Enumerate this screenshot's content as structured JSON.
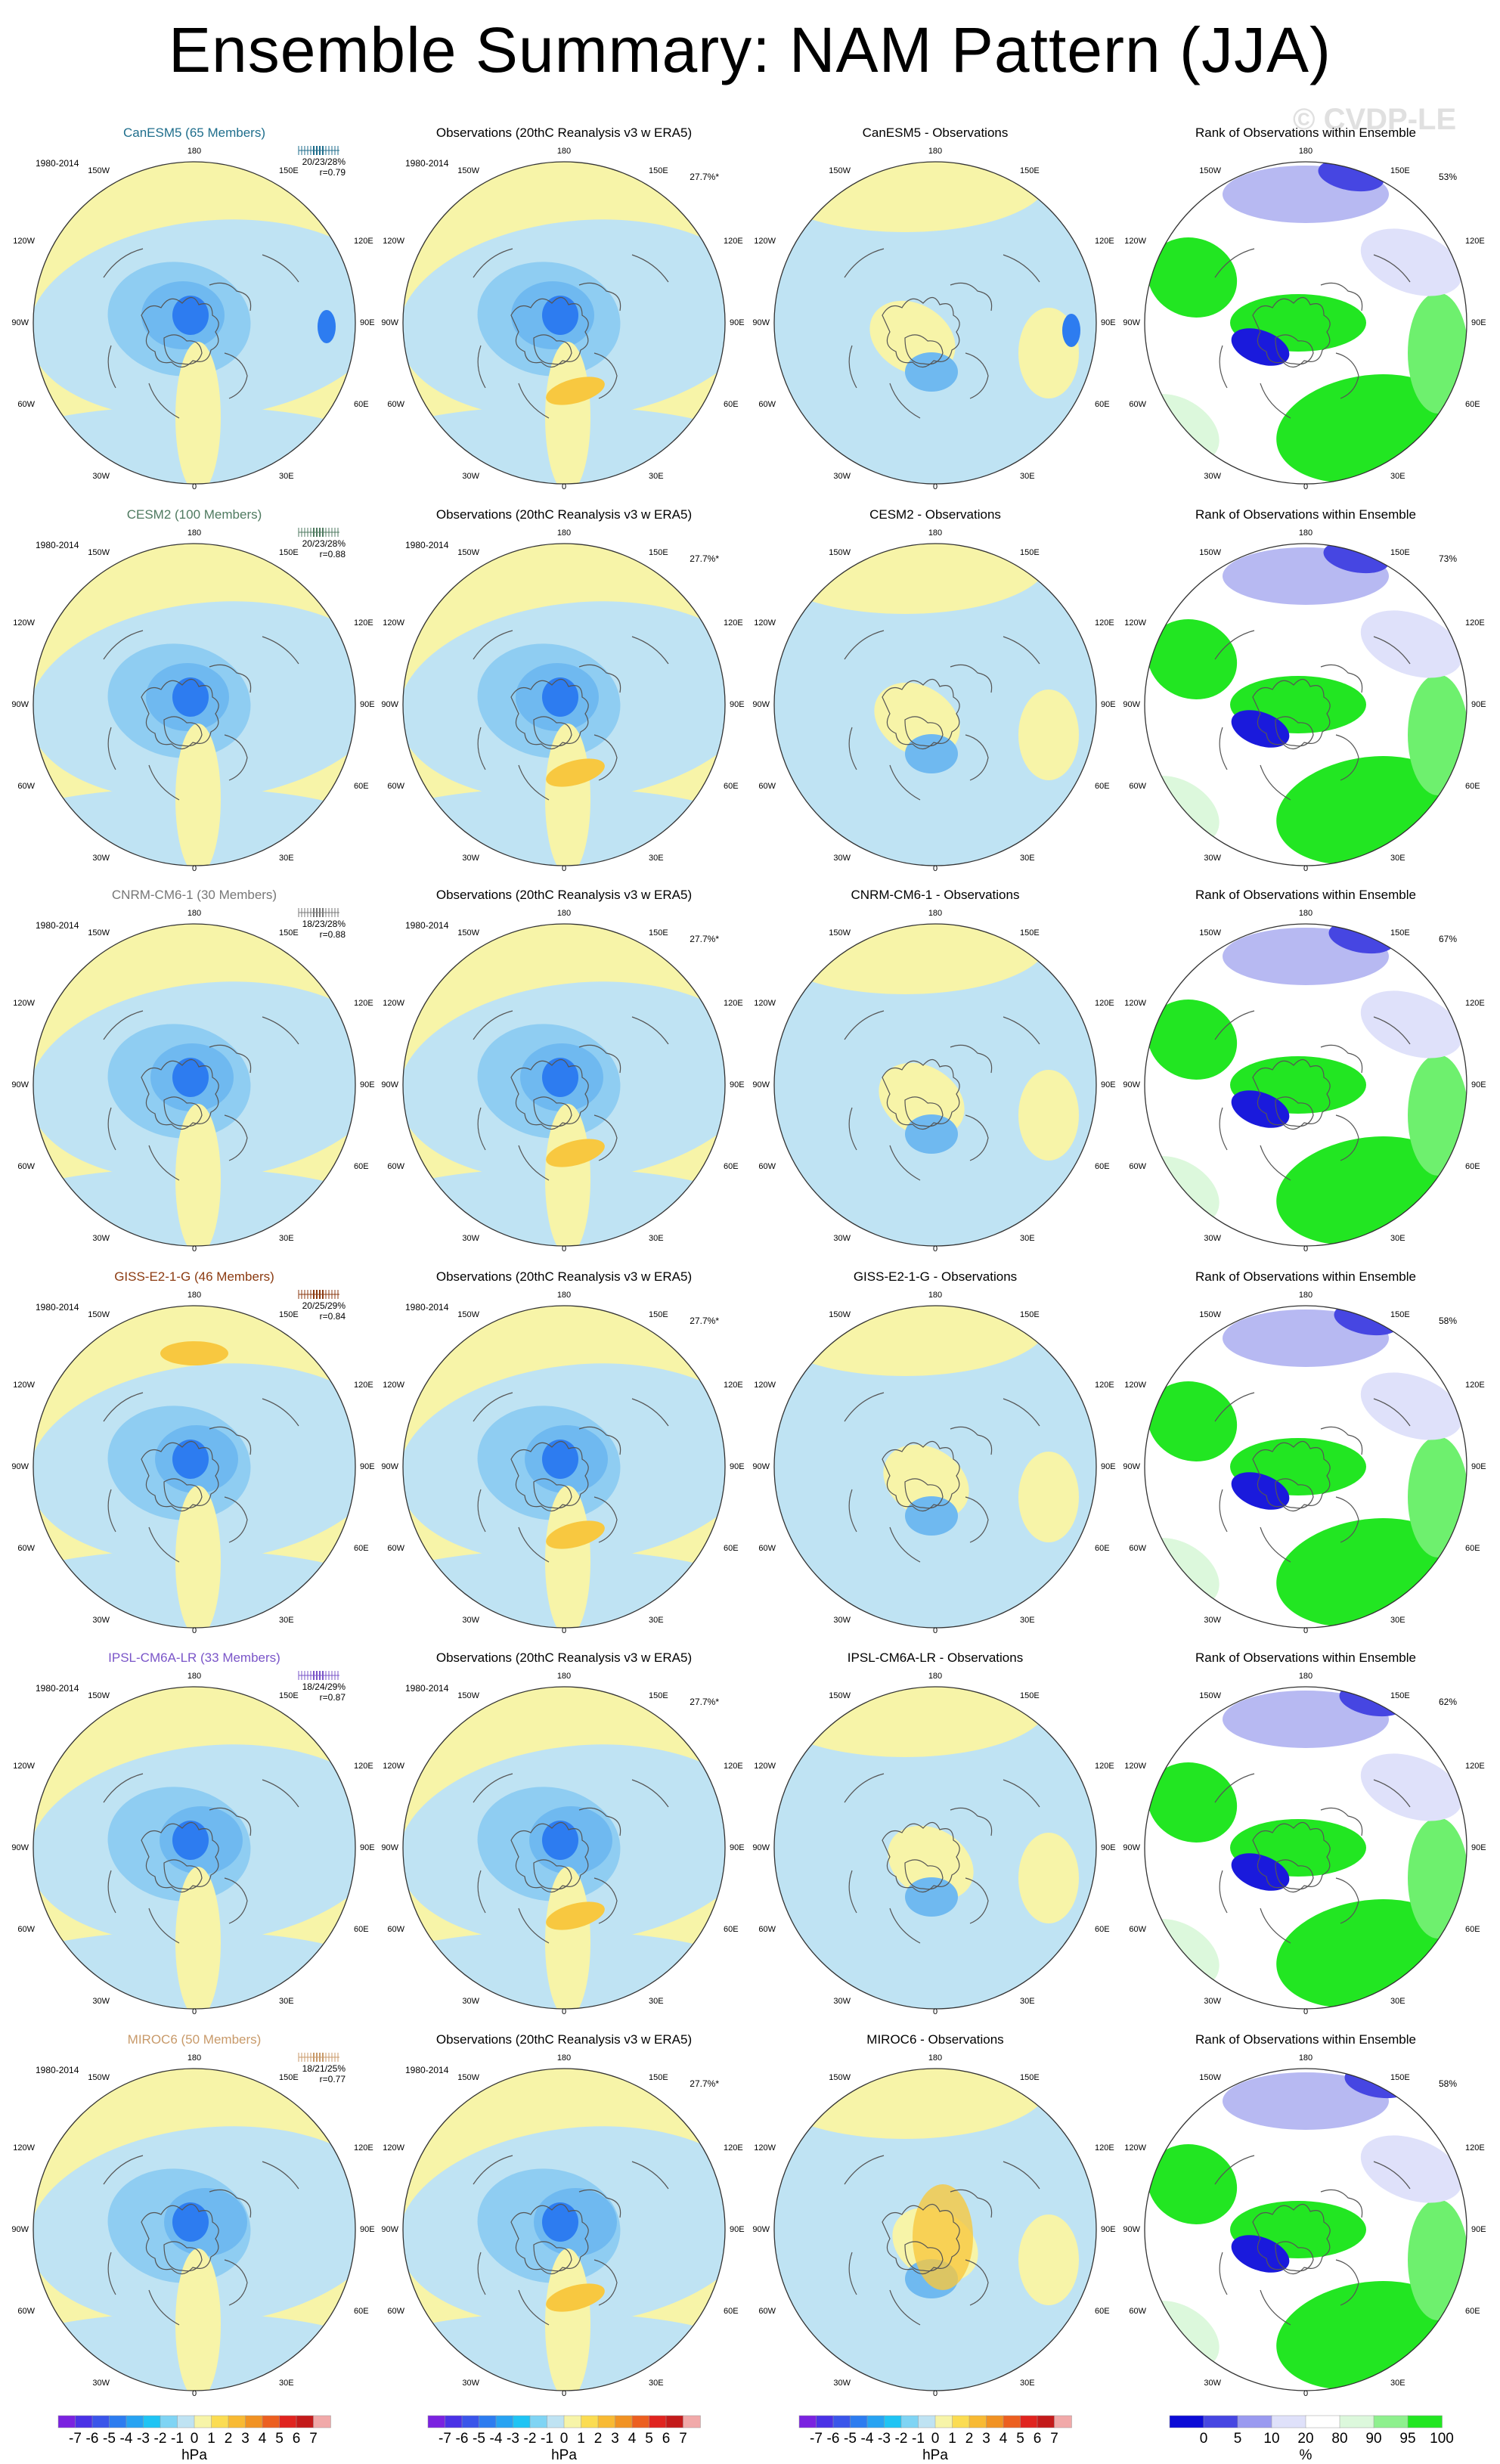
{
  "title": "Ensemble Summary: NAM Pattern (JJA)",
  "watermark": "© CVDP-LE",
  "longitude_labels": [
    "180",
    "150W",
    "150E",
    "120W",
    "120E",
    "90W",
    "90E",
    "60W",
    "60E",
    "30W",
    "30E",
    "0"
  ],
  "obs_title": "Observations (20thC Reanalysis v3 w ERA5)",
  "rank_title": "Rank of Observations within Ensemble",
  "period": "1980-2014",
  "obs_variance": "27.7%*",
  "rows": [
    {
      "model": "CanESM5",
      "model_title": "CanESM5 (65 Members)",
      "model_color": "#1f6e8c",
      "stats": "20/23/28%",
      "r": "r=0.79",
      "diff_title": "CanESM5 - Observations",
      "rank_pct": "53%"
    },
    {
      "model": "CESM2",
      "model_title": "CESM2 (100 Members)",
      "model_color": "#4f7a60",
      "stats": "20/23/28%",
      "r": "r=0.88",
      "diff_title": "CESM2 - Observations",
      "rank_pct": "73%"
    },
    {
      "model": "CNRM-CM6-1",
      "model_title": "CNRM-CM6-1 (30 Members)",
      "model_color": "#777777",
      "stats": "18/23/28%",
      "r": "r=0.88",
      "diff_title": "CNRM-CM6-1 - Observations",
      "rank_pct": "67%"
    },
    {
      "model": "GISS-E2-1-G",
      "model_title": "GISS-E2-1-G (46 Members)",
      "model_color": "#8b3a10",
      "stats": "20/25/29%",
      "r": "r=0.84",
      "diff_title": "GISS-E2-1-G - Observations",
      "rank_pct": "58%"
    },
    {
      "model": "IPSL-CM6A-LR",
      "model_title": "IPSL-CM6A-LR (33 Members)",
      "model_color": "#7a55c8",
      "stats": "18/24/29%",
      "r": "r=0.87",
      "diff_title": "IPSL-CM6A-LR - Observations",
      "rank_pct": "62%"
    },
    {
      "model": "MIROC6",
      "model_title": "MIROC6 (50 Members)",
      "model_color": "#c89a6a",
      "stats": "18/21/25%",
      "r": "r=0.77",
      "diff_title": "MIROC6 - Observations",
      "rank_pct": "58%"
    }
  ],
  "colorbar_hpa": {
    "ticks": [
      "-7",
      "-6",
      "-5",
      "-4",
      "-3",
      "-2",
      "-1",
      "0",
      "1",
      "2",
      "3",
      "4",
      "5",
      "6",
      "7"
    ],
    "unit": "hPa",
    "colors": [
      "#7a22e0",
      "#4a32e6",
      "#3a55ea",
      "#2d7cf0",
      "#27a3f2",
      "#1fc4f4",
      "#7fd4f4",
      "#bfe3f3",
      "#f7f4a8",
      "#fbdc52",
      "#f8ba33",
      "#f19223",
      "#ec5f20",
      "#e0241f",
      "#c31a1a",
      "#f1a9a9"
    ]
  },
  "colorbar_pct": {
    "ticks": [
      "0",
      "5",
      "10",
      "20",
      "80",
      "90",
      "95",
      "100"
    ],
    "unit": "%",
    "colors": [
      "#0b0bd6",
      "#4646e2",
      "#9a9af0",
      "#dfe1fa",
      "#ffffff",
      "#dcf8dc",
      "#8ef08e",
      "#22e622"
    ]
  },
  "colors": {
    "positive": "#f7f4a8",
    "negative": "#bfe3f3",
    "neg_mid": "#6fb9f0",
    "neg_strong": "#2d7cf0",
    "pos_mid": "#f8c840"
  }
}
